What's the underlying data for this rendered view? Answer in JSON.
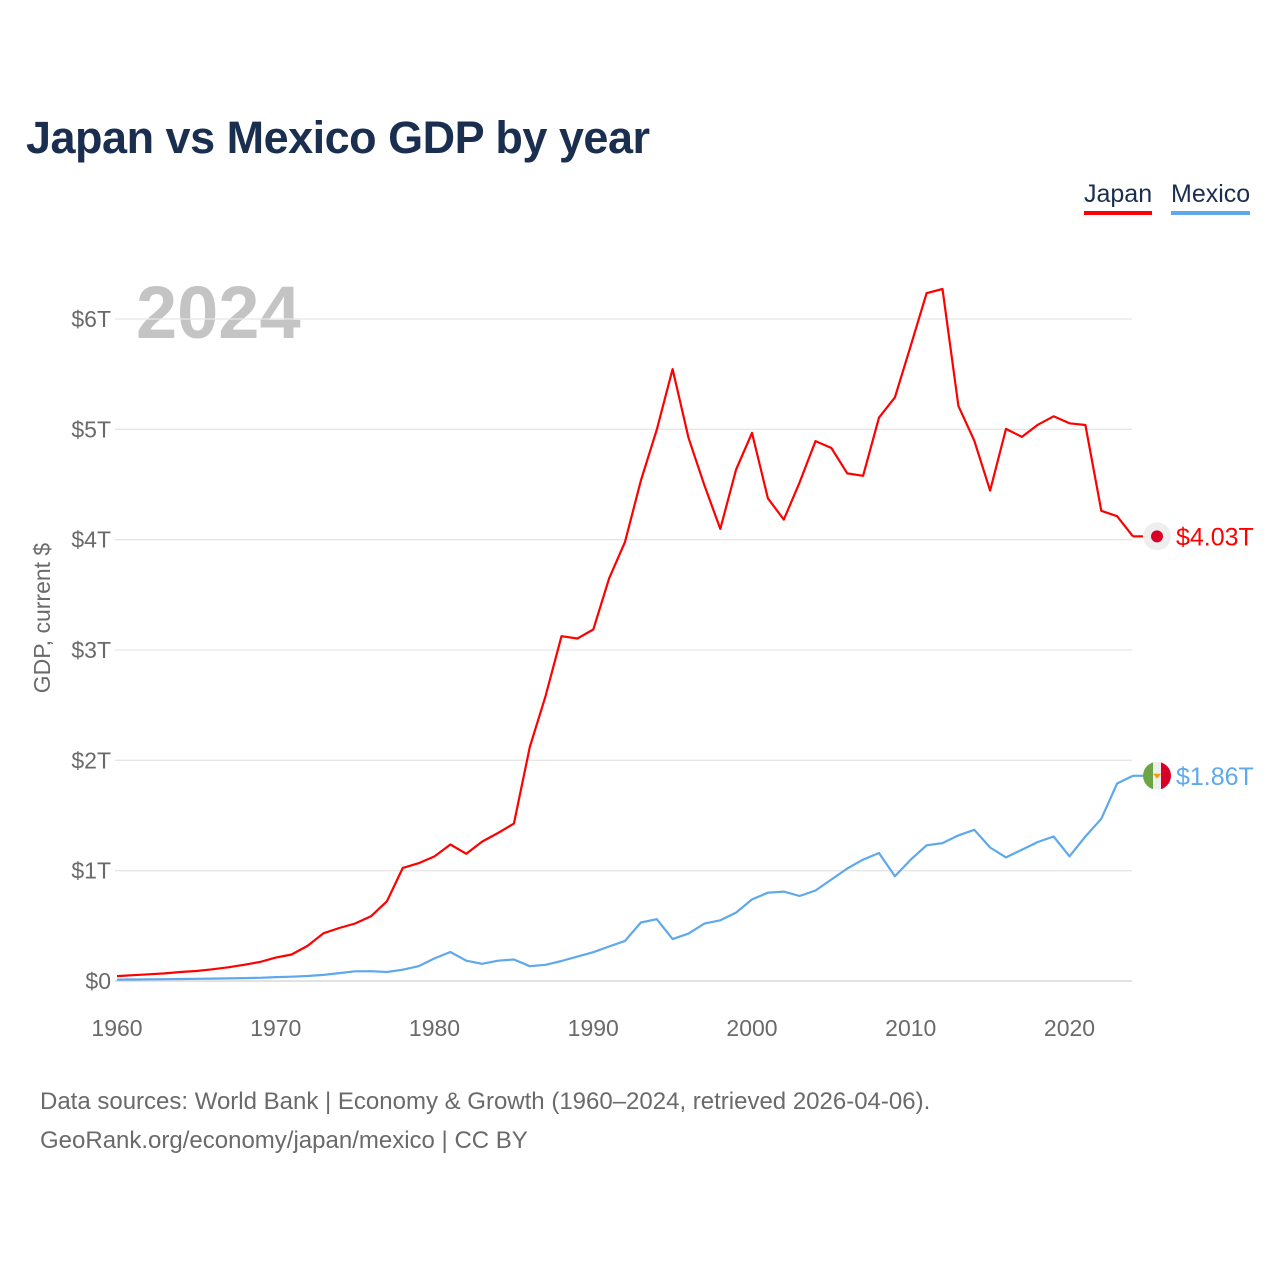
{
  "title": "Japan vs Mexico GDP by year",
  "legend": [
    {
      "label": "Japan",
      "color": "#ff0000"
    },
    {
      "label": "Mexico",
      "color": "#5ea8ec"
    }
  ],
  "source_lines": [
    "Data sources: World Bank | Economy & Growth (1960–2024, retrieved 2026-04-06).",
    "GeoRank.org/economy/japan/mexico | CC BY"
  ],
  "chart_data": {
    "type": "line",
    "title": "Japan vs Mexico GDP by year",
    "year_label": "2024",
    "xlabel": "",
    "ylabel": "GDP, current $",
    "xlim": [
      1960,
      2024
    ],
    "ylim": [
      0,
      6
    ],
    "unit": "trillion USD",
    "xticks": [
      1960,
      1970,
      1980,
      1990,
      2000,
      2010,
      2020
    ],
    "yticks": [
      {
        "v": 0,
        "label": "$0"
      },
      {
        "v": 1,
        "label": "$1T"
      },
      {
        "v": 2,
        "label": "$2T"
      },
      {
        "v": 3,
        "label": "$3T"
      },
      {
        "v": 4,
        "label": "$4T"
      },
      {
        "v": 5,
        "label": "$5T"
      },
      {
        "v": 6,
        "label": "$6T"
      }
    ],
    "grid": true,
    "legend_position": "top-right",
    "x_start": 1960,
    "series": [
      {
        "name": "Japan",
        "color": "#ff0000",
        "end_label": "$4.03T",
        "flag": "japan-flag",
        "values": [
          0.044,
          0.053,
          0.061,
          0.069,
          0.082,
          0.091,
          0.106,
          0.124,
          0.147,
          0.172,
          0.212,
          0.24,
          0.318,
          0.432,
          0.48,
          0.521,
          0.586,
          0.722,
          1.025,
          1.068,
          1.129,
          1.237,
          1.153,
          1.263,
          1.341,
          1.427,
          2.121,
          2.584,
          3.125,
          3.104,
          3.186,
          3.649,
          3.98,
          4.536,
          4.998,
          5.546,
          4.923,
          4.493,
          4.098,
          4.636,
          4.968,
          4.375,
          4.182,
          4.519,
          4.893,
          4.831,
          4.601,
          4.579,
          5.106,
          5.289,
          5.759,
          6.234,
          6.272,
          5.212,
          4.897,
          4.445,
          5.004,
          4.931,
          5.041,
          5.118,
          5.055,
          5.039,
          4.262,
          4.213,
          4.03
        ]
      },
      {
        "name": "Mexico",
        "color": "#5ea8ec",
        "end_label": "$1.86T",
        "flag": "mexico-flag",
        "values": [
          0.013,
          0.014,
          0.015,
          0.016,
          0.018,
          0.02,
          0.022,
          0.024,
          0.026,
          0.029,
          0.035,
          0.039,
          0.045,
          0.055,
          0.072,
          0.088,
          0.089,
          0.082,
          0.102,
          0.134,
          0.205,
          0.263,
          0.184,
          0.156,
          0.184,
          0.195,
          0.134,
          0.147,
          0.181,
          0.221,
          0.261,
          0.313,
          0.363,
          0.53,
          0.56,
          0.38,
          0.43,
          0.52,
          0.55,
          0.62,
          0.74,
          0.8,
          0.81,
          0.77,
          0.82,
          0.92,
          1.02,
          1.1,
          1.16,
          0.95,
          1.1,
          1.23,
          1.25,
          1.32,
          1.37,
          1.21,
          1.12,
          1.19,
          1.26,
          1.31,
          1.13,
          1.31,
          1.47,
          1.79,
          1.86
        ]
      }
    ]
  }
}
